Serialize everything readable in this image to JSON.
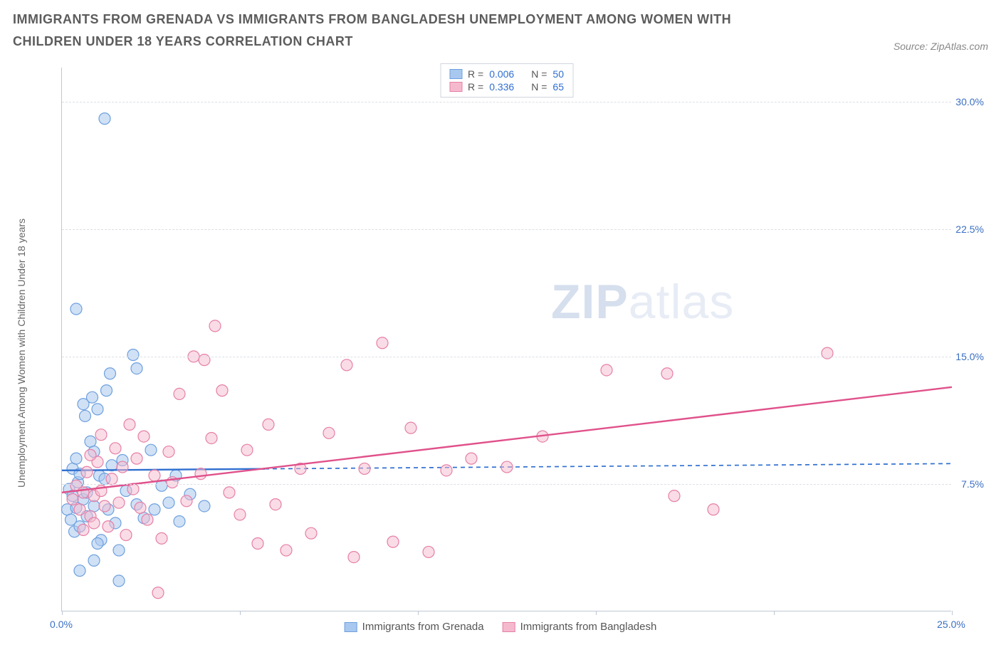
{
  "title": "IMMIGRANTS FROM GRENADA VS IMMIGRANTS FROM BANGLADESH UNEMPLOYMENT AMONG WOMEN WITH CHILDREN UNDER 18 YEARS CORRELATION CHART",
  "source_label": "Source: ZipAtlas.com",
  "y_axis_label": "Unemployment Among Women with Children Under 18 years",
  "watermark": {
    "strong": "ZIP",
    "light": "atlas"
  },
  "chart": {
    "type": "scatter",
    "background_color": "#ffffff",
    "grid_color": "#dcdfe6",
    "axis_color": "#bfc6d4",
    "tick_label_color": "#3a6fc4",
    "xlim": [
      0.0,
      25.0
    ],
    "ylim": [
      0.0,
      32.0
    ],
    "x_tick_positions": [
      0.0,
      5.0,
      10.0,
      15.0,
      20.0,
      25.0
    ],
    "x_tick_labels": [
      "0.0%",
      "",
      "",
      "",
      "",
      "25.0%"
    ],
    "y_grid_positions": [
      7.5,
      15.0,
      22.5,
      30.0
    ],
    "y_tick_labels": [
      "7.5%",
      "15.0%",
      "22.5%",
      "30.0%"
    ],
    "marker_radius": 8,
    "marker_stroke_width": 1.2,
    "line_width": 2.4,
    "series": [
      {
        "key": "grenada",
        "label": "Immigrants from Grenada",
        "fill": "#a9c8ef",
        "fill_opacity": 0.55,
        "stroke": "#6ea0de",
        "line_color": "#2f6fd0",
        "line_dashed": true,
        "R": "0.006",
        "N": "50",
        "trend": {
          "x1": 0.0,
          "y1": 8.3,
          "x2": 25.0,
          "y2": 8.7
        },
        "trend_clip_x": 5.7,
        "points": [
          [
            0.15,
            6.0
          ],
          [
            0.2,
            7.2
          ],
          [
            0.25,
            5.4
          ],
          [
            0.3,
            6.8
          ],
          [
            0.3,
            8.4
          ],
          [
            0.35,
            4.7
          ],
          [
            0.4,
            6.1
          ],
          [
            0.4,
            9.0
          ],
          [
            0.45,
            7.6
          ],
          [
            0.5,
            5.0
          ],
          [
            0.5,
            8.1
          ],
          [
            0.6,
            6.6
          ],
          [
            0.6,
            12.2
          ],
          [
            0.65,
            11.5
          ],
          [
            0.7,
            7.0
          ],
          [
            0.8,
            10.0
          ],
          [
            0.85,
            12.6
          ],
          [
            0.9,
            6.2
          ],
          [
            0.9,
            9.4
          ],
          [
            1.0,
            11.9
          ],
          [
            1.05,
            8.0
          ],
          [
            1.1,
            4.2
          ],
          [
            1.2,
            7.8
          ],
          [
            1.25,
            13.0
          ],
          [
            1.3,
            6.0
          ],
          [
            1.35,
            14.0
          ],
          [
            1.4,
            8.6
          ],
          [
            1.5,
            5.2
          ],
          [
            1.6,
            1.8
          ],
          [
            1.7,
            8.9
          ],
          [
            1.8,
            7.1
          ],
          [
            2.0,
            15.1
          ],
          [
            2.1,
            6.3
          ],
          [
            2.1,
            14.3
          ],
          [
            2.3,
            5.5
          ],
          [
            2.5,
            9.5
          ],
          [
            2.6,
            6.0
          ],
          [
            2.8,
            7.4
          ],
          [
            3.0,
            6.4
          ],
          [
            3.2,
            8.0
          ],
          [
            3.3,
            5.3
          ],
          [
            3.6,
            6.9
          ],
          [
            4.0,
            6.2
          ],
          [
            0.4,
            17.8
          ],
          [
            1.2,
            29.0
          ],
          [
            0.9,
            3.0
          ],
          [
            0.5,
            2.4
          ],
          [
            1.0,
            4.0
          ],
          [
            1.6,
            3.6
          ],
          [
            0.7,
            5.6
          ]
        ]
      },
      {
        "key": "bangladesh",
        "label": "Immigrants from Bangladesh",
        "fill": "#f5b9ce",
        "fill_opacity": 0.5,
        "stroke": "#e67fa6",
        "line_color": "#e0518b",
        "line_dashed": false,
        "R": "0.336",
        "N": "65",
        "trend": {
          "x1": 0.0,
          "y1": 7.0,
          "x2": 25.0,
          "y2": 13.2
        },
        "trend_clip_x": 25.0,
        "points": [
          [
            0.3,
            6.6
          ],
          [
            0.4,
            7.4
          ],
          [
            0.5,
            6.0
          ],
          [
            0.6,
            7.0
          ],
          [
            0.7,
            8.2
          ],
          [
            0.8,
            5.6
          ],
          [
            0.9,
            6.8
          ],
          [
            1.0,
            8.8
          ],
          [
            1.1,
            7.1
          ],
          [
            1.2,
            6.2
          ],
          [
            1.3,
            5.0
          ],
          [
            1.4,
            7.8
          ],
          [
            1.5,
            9.6
          ],
          [
            1.6,
            6.4
          ],
          [
            1.7,
            8.5
          ],
          [
            1.8,
            4.5
          ],
          [
            2.0,
            7.2
          ],
          [
            2.1,
            9.0
          ],
          [
            2.2,
            6.1
          ],
          [
            2.4,
            5.4
          ],
          [
            2.6,
            8.0
          ],
          [
            2.8,
            4.3
          ],
          [
            3.0,
            9.4
          ],
          [
            3.1,
            7.6
          ],
          [
            3.3,
            12.8
          ],
          [
            3.5,
            6.5
          ],
          [
            3.7,
            15.0
          ],
          [
            3.9,
            8.1
          ],
          [
            4.0,
            14.8
          ],
          [
            4.2,
            10.2
          ],
          [
            4.3,
            16.8
          ],
          [
            4.5,
            13.0
          ],
          [
            4.7,
            7.0
          ],
          [
            5.0,
            5.7
          ],
          [
            5.2,
            9.5
          ],
          [
            5.5,
            4.0
          ],
          [
            5.8,
            11.0
          ],
          [
            6.0,
            6.3
          ],
          [
            6.3,
            3.6
          ],
          [
            6.7,
            8.4
          ],
          [
            7.0,
            4.6
          ],
          [
            7.5,
            10.5
          ],
          [
            8.0,
            14.5
          ],
          [
            8.2,
            3.2
          ],
          [
            8.5,
            8.4
          ],
          [
            9.0,
            15.8
          ],
          [
            9.3,
            4.1
          ],
          [
            9.8,
            10.8
          ],
          [
            10.3,
            3.5
          ],
          [
            10.8,
            8.3
          ],
          [
            11.5,
            9.0
          ],
          [
            12.5,
            8.5
          ],
          [
            13.5,
            10.3
          ],
          [
            15.3,
            14.2
          ],
          [
            17.0,
            14.0
          ],
          [
            17.2,
            6.8
          ],
          [
            18.3,
            6.0
          ],
          [
            21.5,
            15.2
          ],
          [
            2.7,
            1.1
          ],
          [
            0.8,
            9.2
          ],
          [
            1.1,
            10.4
          ],
          [
            1.9,
            11.0
          ],
          [
            2.3,
            10.3
          ],
          [
            0.6,
            4.8
          ],
          [
            0.9,
            5.2
          ]
        ]
      }
    ]
  },
  "legend_top": {
    "R_label": "R =",
    "N_label": "N ="
  }
}
